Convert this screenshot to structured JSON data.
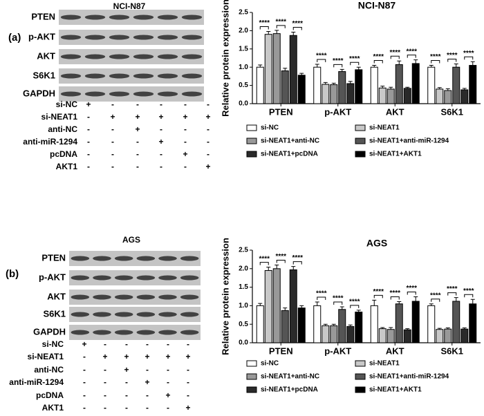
{
  "chart_data": [
    {
      "type": "bar",
      "title": "NCI-N87",
      "ylabel": "Relative protein expression",
      "categories": [
        "PTEN",
        "p-AKT",
        "AKT",
        "S6K1"
      ],
      "ylim": [
        0,
        2.5
      ],
      "yticks": [
        {
          "value": 0,
          "label": "0.0"
        },
        {
          "value": 0.5,
          "label": "0.5"
        },
        {
          "value": 1,
          "label": "1.0"
        },
        {
          "value": 1.5,
          "label": "1.5"
        },
        {
          "value": 2,
          "label": "2.0"
        },
        {
          "value": 2.5,
          "label": "2.5"
        }
      ],
      "significance_label": "****",
      "series": [
        {
          "name": "si-NC",
          "color": "#ffffff",
          "values": [
            1.0,
            1.0,
            1.0,
            1.0
          ],
          "errors": [
            0.06,
            0.08,
            0.05,
            0.05
          ]
        },
        {
          "name": "si-NEAT1",
          "color": "#c8c8c8",
          "values": [
            1.9,
            0.53,
            0.43,
            0.4
          ],
          "errors": [
            0.08,
            0.05,
            0.05,
            0.04
          ]
        },
        {
          "name": "si-NEAT1+anti-NC",
          "color": "#999999",
          "values": [
            1.92,
            0.52,
            0.4,
            0.36
          ],
          "errors": [
            0.09,
            0.04,
            0.05,
            0.05
          ]
        },
        {
          "name": "si-NEAT1+anti-miR-1294",
          "color": "#555555",
          "values": [
            0.9,
            0.88,
            1.07,
            1.0
          ],
          "errors": [
            0.07,
            0.06,
            0.1,
            0.09
          ]
        },
        {
          "name": "si-NEAT1+pcDNA",
          "color": "#2a2a2a",
          "values": [
            1.87,
            0.55,
            0.42,
            0.38
          ],
          "errors": [
            0.09,
            0.06,
            0.03,
            0.04
          ]
        },
        {
          "name": "si-NEAT1+AKT1",
          "color": "#000000",
          "values": [
            0.78,
            0.93,
            1.1,
            1.05
          ],
          "errors": [
            0.05,
            0.07,
            0.1,
            0.1
          ]
        }
      ]
    },
    {
      "type": "bar",
      "title": "AGS",
      "ylabel": "Relative protein expression",
      "categories": [
        "PTEN",
        "p-AKT",
        "AKT",
        "S6K1"
      ],
      "ylim": [
        0,
        2.5
      ],
      "yticks": [
        {
          "value": 0,
          "label": "0.0"
        },
        {
          "value": 0.5,
          "label": "0.5"
        },
        {
          "value": 1,
          "label": "1.0"
        },
        {
          "value": 1.5,
          "label": "1.5"
        },
        {
          "value": 2,
          "label": "2.0"
        },
        {
          "value": 2.5,
          "label": "2.5"
        }
      ],
      "significance_label": "****",
      "series": [
        {
          "name": "si-NC",
          "color": "#ffffff",
          "values": [
            1.0,
            1.0,
            1.0,
            1.0
          ],
          "errors": [
            0.06,
            0.1,
            0.15,
            0.05
          ]
        },
        {
          "name": "si-NEAT1",
          "color": "#c8c8c8",
          "values": [
            1.95,
            0.46,
            0.38,
            0.36
          ],
          "errors": [
            0.09,
            0.04,
            0.03,
            0.03
          ]
        },
        {
          "name": "si-NEAT1+anti-NC",
          "color": "#999999",
          "values": [
            2.0,
            0.46,
            0.36,
            0.37
          ],
          "errors": [
            0.1,
            0.04,
            0.05,
            0.03
          ]
        },
        {
          "name": "si-NEAT1+anti-miR-1294",
          "color": "#555555",
          "values": [
            0.87,
            0.9,
            1.05,
            1.12
          ],
          "errors": [
            0.07,
            0.07,
            0.06,
            0.1
          ]
        },
        {
          "name": "si-NEAT1+pcDNA",
          "color": "#2a2a2a",
          "values": [
            1.97,
            0.44,
            0.35,
            0.37
          ],
          "errors": [
            0.09,
            0.04,
            0.03,
            0.03
          ]
        },
        {
          "name": "si-NEAT1+AKT1",
          "color": "#000000",
          "values": [
            0.94,
            0.83,
            1.12,
            1.05
          ],
          "errors": [
            0.06,
            0.05,
            0.12,
            0.12
          ]
        }
      ]
    }
  ],
  "blots": [
    {
      "panel_label": "(a)",
      "title": "NCI-N87",
      "proteins": [
        "PTEN",
        "p-AKT",
        "AKT",
        "S6K1",
        "GAPDH"
      ],
      "conditions": [
        {
          "name": "si-NC",
          "signs": [
            "+",
            "-",
            "-",
            "-",
            "-",
            "-"
          ]
        },
        {
          "name": "si-NEAT1",
          "signs": [
            "-",
            "+",
            "+",
            "+",
            "+",
            "+"
          ]
        },
        {
          "name": "anti-NC",
          "signs": [
            "-",
            "-",
            "+",
            "-",
            "-",
            "-"
          ]
        },
        {
          "name": "anti-miR-1294",
          "signs": [
            "-",
            "-",
            "-",
            "+",
            "-",
            "-"
          ]
        },
        {
          "name": "pcDNA",
          "signs": [
            "-",
            "-",
            "-",
            "-",
            "+",
            "-"
          ]
        },
        {
          "name": "AKT1",
          "signs": [
            "-",
            "-",
            "-",
            "-",
            "-",
            "+"
          ]
        }
      ]
    },
    {
      "panel_label": "(b)",
      "title": "AGS",
      "proteins": [
        "PTEN",
        "p-AKT",
        "AKT",
        "S6K1",
        "GAPDH"
      ],
      "conditions": [
        {
          "name": "si-NC",
          "signs": [
            "+",
            "-",
            "-",
            "-",
            "-",
            "-"
          ]
        },
        {
          "name": "si-NEAT1",
          "signs": [
            "-",
            "+",
            "+",
            "+",
            "+",
            "+"
          ]
        },
        {
          "name": "anti-NC",
          "signs": [
            "-",
            "-",
            "+",
            "-",
            "-",
            "-"
          ]
        },
        {
          "name": "anti-miR-1294",
          "signs": [
            "-",
            "-",
            "-",
            "+",
            "-",
            "-"
          ]
        },
        {
          "name": "pcDNA",
          "signs": [
            "-",
            "-",
            "-",
            "-",
            "+",
            "-"
          ]
        },
        {
          "name": "AKT1",
          "signs": [
            "-",
            "-",
            "-",
            "-",
            "-",
            "+"
          ]
        }
      ]
    }
  ]
}
